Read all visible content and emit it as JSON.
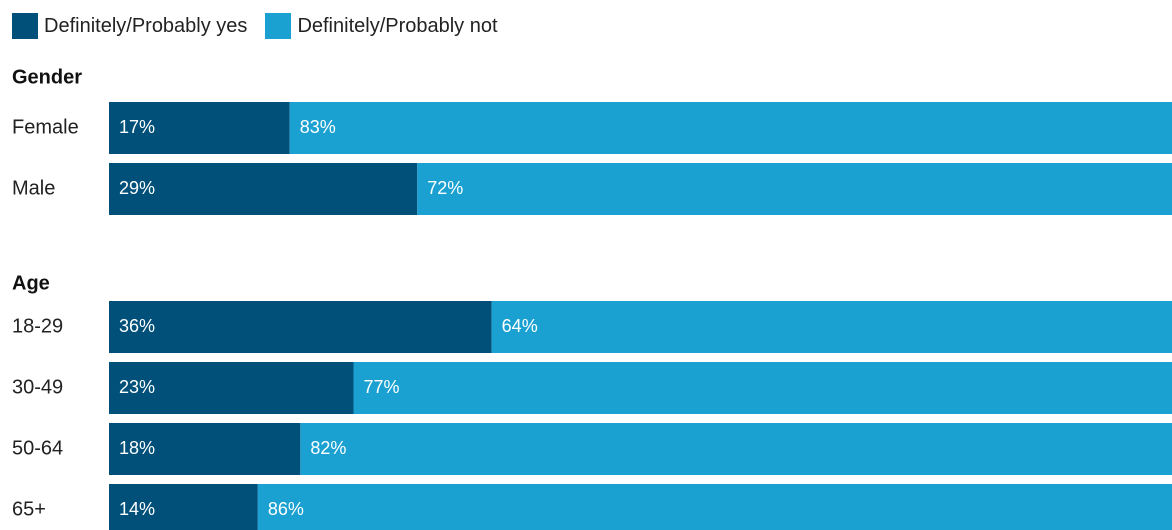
{
  "legend": {
    "yes_label": "Definitely/Probably yes",
    "no_label": "Definitely/Probably not"
  },
  "colors": {
    "yes": "#00507a",
    "no": "#1aa1d1"
  },
  "chart_data": {
    "type": "bar",
    "orientation": "horizontal-stacked",
    "xlim": [
      0,
      100
    ],
    "series": [
      {
        "name": "Definitely/Probably yes"
      },
      {
        "name": "Definitely/Probably not"
      }
    ],
    "groups": [
      {
        "title": "Gender",
        "rows": [
          {
            "category": "Female",
            "values": [
              17,
              83
            ],
            "labels": [
              "17%",
              "83%"
            ]
          },
          {
            "category": "Male",
            "values": [
              29,
              72
            ],
            "labels": [
              "29%",
              "72%"
            ]
          }
        ]
      },
      {
        "title": "Age",
        "rows": [
          {
            "category": "18-29",
            "values": [
              36,
              64
            ],
            "labels": [
              "36%",
              "64%"
            ]
          },
          {
            "category": "30-49",
            "values": [
              23,
              77
            ],
            "labels": [
              "23%",
              "77%"
            ]
          },
          {
            "category": "50-64",
            "values": [
              18,
              82
            ],
            "labels": [
              "18%",
              "82%"
            ]
          },
          {
            "category": "65+",
            "values": [
              14,
              86
            ],
            "labels": [
              "14%",
              "86%"
            ]
          }
        ]
      }
    ]
  }
}
